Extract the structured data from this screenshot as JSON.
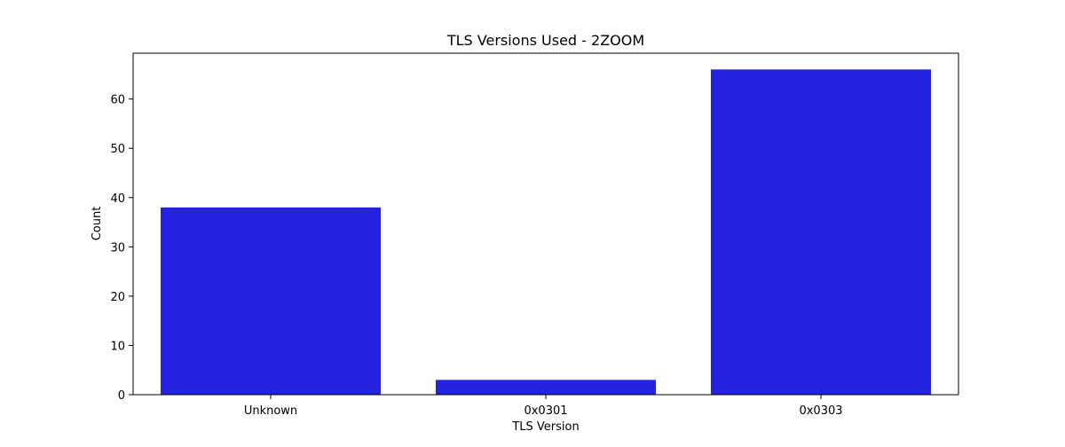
{
  "chart_data": {
    "type": "bar",
    "title": "TLS Versions Used - 2ZOOM",
    "xlabel": "TLS Version",
    "ylabel": "Count",
    "categories": [
      "Unknown",
      "0x0301",
      "0x0303"
    ],
    "values": [
      38,
      3,
      66
    ],
    "ylim": [
      0,
      69.3
    ],
    "yticks": [
      0,
      10,
      20,
      30,
      40,
      50,
      60
    ],
    "bar_color": "#2222e0",
    "grid": false,
    "legend": "none"
  }
}
